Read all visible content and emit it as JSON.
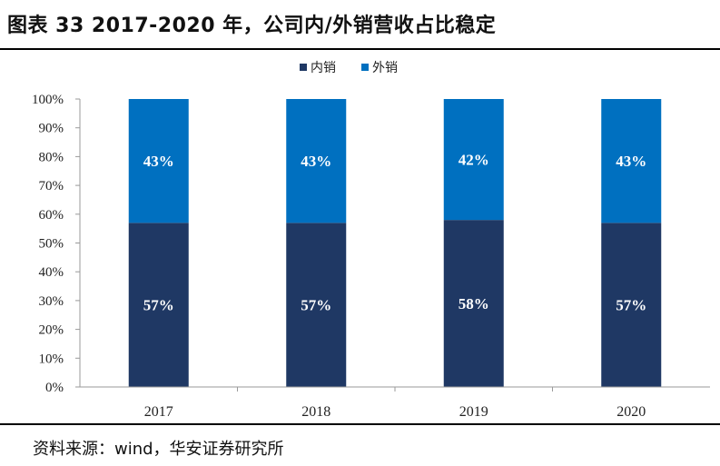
{
  "header": {
    "title": "图表 33 2017-2020 年，公司内/外销营收占比稳定"
  },
  "footer": {
    "source": "资料来源：wind，华安证券研究所"
  },
  "colors": {
    "domestic": "#1F3864",
    "export": "#0070C0"
  },
  "chart_data": {
    "type": "bar",
    "stacked": true,
    "percent": true,
    "categories": [
      "2017",
      "2018",
      "2019",
      "2020"
    ],
    "series": [
      {
        "name": "内销",
        "values": [
          57,
          57,
          58,
          57
        ],
        "labels": [
          "57%",
          "57%",
          "58%",
          "57%"
        ]
      },
      {
        "name": "外销",
        "values": [
          43,
          43,
          42,
          43
        ],
        "labels": [
          "43%",
          "43%",
          "42%",
          "43%"
        ]
      }
    ],
    "ylim": [
      0,
      100
    ],
    "yticks": [
      "0%",
      "10%",
      "20%",
      "30%",
      "40%",
      "50%",
      "60%",
      "70%",
      "80%",
      "90%",
      "100%"
    ],
    "legend_position": "top-center",
    "grid": false
  }
}
